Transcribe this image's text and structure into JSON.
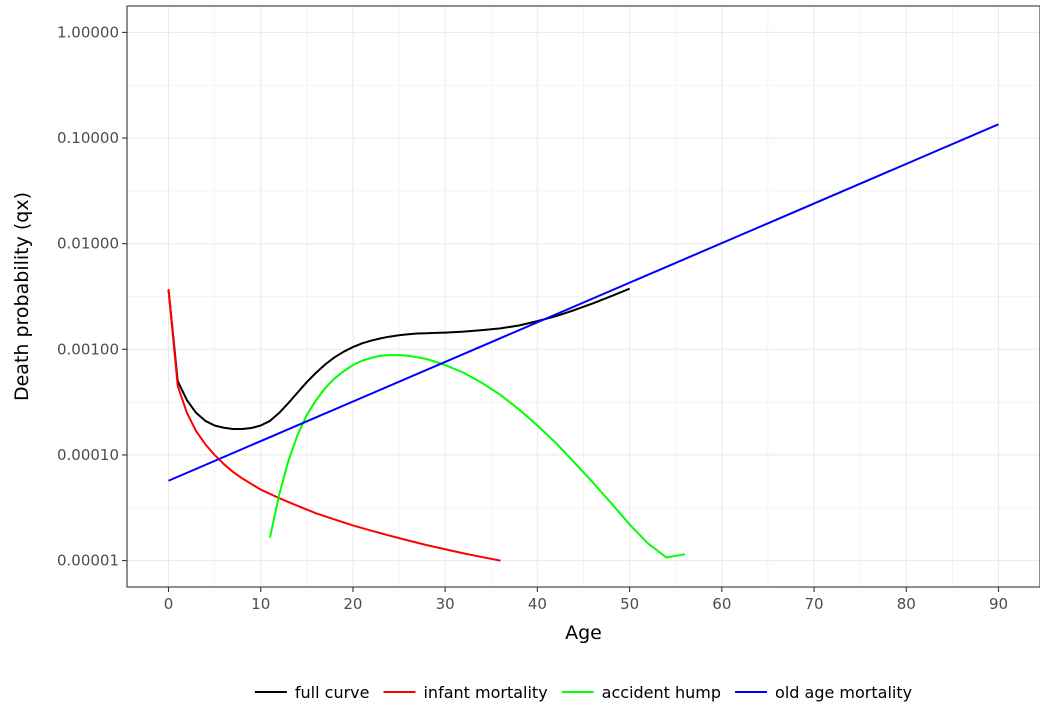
{
  "chart_data": {
    "type": "line",
    "xlabel": "Age",
    "ylabel": "Death probability (qx)",
    "xlim": [
      -4.5,
      94.5
    ],
    "ylim_log10": [
      -5.25,
      0.25
    ],
    "y_scale": "log10",
    "x_ticks": [
      0,
      10,
      20,
      30,
      40,
      50,
      60,
      70,
      80,
      90
    ],
    "y_ticks": [
      1e-05,
      0.0001,
      0.001,
      0.01,
      0.1,
      1
    ],
    "y_tick_labels": [
      "0.00001",
      "0.00010",
      "0.00100",
      "0.01000",
      "0.10000",
      "1.00000"
    ],
    "grid": true,
    "legend_position": "bottom",
    "series": [
      {
        "name": "full curve",
        "color": "#000000",
        "x": [
          0,
          1,
          2,
          3,
          4,
          5,
          6,
          7,
          8,
          9,
          10,
          11,
          12,
          13,
          14,
          15,
          16,
          17,
          18,
          19,
          20,
          21,
          22,
          23,
          24,
          25,
          26,
          27,
          28,
          29,
          30,
          32,
          34,
          36,
          38,
          40,
          42,
          44,
          46,
          48,
          50
        ],
        "y": [
          0.0037,
          0.0005,
          0.00033,
          0.00025,
          0.00021,
          0.00019,
          0.000181,
          0.000176,
          0.000176,
          0.00018,
          0.00019,
          0.00021,
          0.00025,
          0.00031,
          0.00039,
          0.00049,
          0.0006,
          0.00072,
          0.00084,
          0.00095,
          0.00105,
          0.00114,
          0.00121,
          0.00127,
          0.00132,
          0.00136,
          0.00139,
          0.00141,
          0.00142,
          0.00143,
          0.00144,
          0.00147,
          0.00152,
          0.00158,
          0.00168,
          0.00185,
          0.00206,
          0.00235,
          0.00272,
          0.00318,
          0.00375
        ]
      },
      {
        "name": "infant mortality",
        "color": "#ff0000",
        "x": [
          0,
          1,
          2,
          3,
          4,
          5,
          6,
          7,
          8,
          9,
          10,
          12,
          14,
          16,
          18,
          20,
          22,
          24,
          26,
          28,
          30,
          32,
          34,
          36
        ],
        "y": [
          0.0037,
          0.00045,
          0.00025,
          0.000168,
          0.000126,
          0.0001,
          8.2e-05,
          6.9e-05,
          6e-05,
          5.3e-05,
          4.7e-05,
          3.9e-05,
          3.3e-05,
          2.8e-05,
          2.45e-05,
          2.15e-05,
          1.92e-05,
          1.72e-05,
          1.55e-05,
          1.4e-05,
          1.28e-05,
          1.17e-05,
          1.08e-05,
          1e-05
        ]
      },
      {
        "name": "accident hump",
        "color": "#00ff00",
        "x": [
          11,
          12,
          13,
          14,
          15,
          16,
          17,
          18,
          19,
          20,
          21,
          22,
          23,
          24,
          25,
          26,
          27,
          28,
          30,
          32,
          34,
          36,
          38,
          40,
          42,
          44,
          46,
          48,
          50,
          52,
          54,
          56
        ],
        "y": [
          1.65e-05,
          4.2e-05,
          8.8e-05,
          0.000155,
          0.00024,
          0.00033,
          0.00043,
          0.00053,
          0.00062,
          0.00071,
          0.00078,
          0.00083,
          0.00087,
          0.00088,
          0.00088,
          0.00087,
          0.00084,
          0.00081,
          0.00071,
          0.0006,
          0.00048,
          0.00037,
          0.00027,
          0.00019,
          0.00013,
          8.5e-05,
          5.5e-05,
          3.5e-05,
          2.2e-05,
          1.45e-05,
          1.07e-05,
          1.15e-05
        ]
      },
      {
        "name": "old age mortality",
        "color": "#0000ff",
        "x": [
          0,
          90
        ],
        "y": [
          5.7e-05,
          0.135
        ]
      }
    ]
  }
}
